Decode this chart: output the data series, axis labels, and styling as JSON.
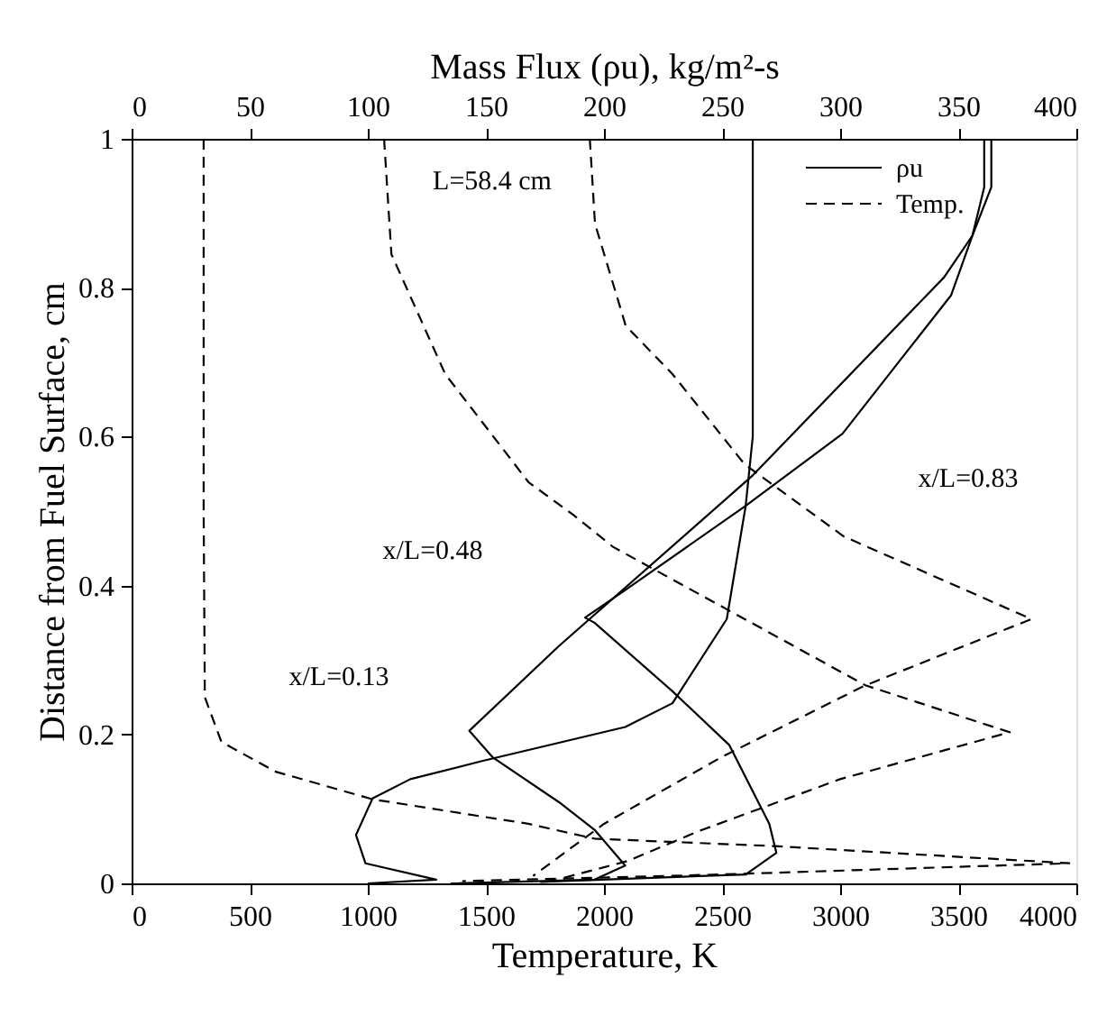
{
  "chart_data": {
    "type": "line",
    "xlabel": "Temperature, K",
    "x2label": "Mass Flux (ρu), kg/m²-s",
    "ylabel": "Distance from Fuel Surface, cm",
    "xlim": [
      0,
      4000
    ],
    "xticks": [
      0,
      500,
      1000,
      1500,
      2000,
      2500,
      3000,
      3500,
      4000
    ],
    "x2lim": [
      0,
      400
    ],
    "x2ticks": [
      0,
      50,
      100,
      150,
      200,
      250,
      300,
      350,
      400
    ],
    "ylim": [
      0,
      1
    ],
    "yticks": [
      0,
      0.2,
      0.4,
      0.6,
      0.8,
      1
    ],
    "grid": false,
    "legend": "top right",
    "marker": "none",
    "series": [
      {
        "name": "ρu",
        "color": "#000000",
        "line_style": "solid",
        "axis": "x2",
        "x": [
          100,
          129,
          99,
          95,
          102,
          118,
          148,
          209,
          229,
          252,
          260,
          263,
          263
        ],
        "values": [
          0,
          0.005,
          0.027,
          0.065,
          0.114,
          0.14,
          0.164,
          0.21,
          0.242,
          0.355,
          0.507,
          0.6,
          1
        ]
      },
      {
        "color": "#000000",
        "line_style": "solid",
        "axis": "x2",
        "x": [
          135,
          196,
          209,
          196,
          181,
          153,
          143,
          181,
          263,
          344,
          356,
          361,
          361
        ],
        "values": [
          0,
          0.005,
          0.024,
          0.072,
          0.109,
          0.169,
          0.205,
          0.319,
          0.548,
          0.814,
          0.87,
          0.935,
          1
        ]
      },
      {
        "color": "#000000",
        "line_style": "solid",
        "axis": "x2",
        "x": [
          173,
          260,
          273,
          270,
          253,
          229,
          196,
          192,
          209,
          260,
          301,
          347,
          356,
          364,
          364
        ],
        "values": [
          0.002,
          0.012,
          0.041,
          0.08,
          0.186,
          0.258,
          0.35,
          0.357,
          0.394,
          0.507,
          0.604,
          0.79,
          0.87,
          0.935,
          1
        ]
      },
      {
        "name": "Temp.",
        "color": "#000000",
        "line_style": "dashed",
        "x": [
          305,
          305,
          310,
          380,
          610,
          1020,
          1680,
          1960,
          2725,
          3970,
          2500,
          1400
        ],
        "values": [
          1,
          0.5,
          0.25,
          0.19,
          0.15,
          0.113,
          0.08,
          0.06,
          0.05,
          0.027,
          0.012,
          0.003
        ]
      },
      {
        "color": "#000000",
        "line_style": "dashed",
        "x": [
          1069,
          1100,
          1328,
          1680,
          1870,
          2038,
          3107,
          3718,
          3000,
          2400,
          2100,
          1800
        ],
        "values": [
          1,
          0.845,
          0.684,
          0.539,
          0.495,
          0.452,
          0.266,
          0.203,
          0.14,
          0.07,
          0.03,
          0.005
        ]
      },
      {
        "color": "#000000",
        "line_style": "dashed",
        "x": [
          1940,
          1962,
          2092,
          2290,
          2595,
          3015,
          3810,
          3100,
          2500,
          2000,
          1700
        ],
        "values": [
          1,
          0.886,
          0.749,
          0.684,
          0.563,
          0.466,
          0.355,
          0.265,
          0.17,
          0.08,
          0.01
        ]
      }
    ],
    "annotations": [
      "L=58.4 cm",
      "x/L=0.13",
      "x/L=0.48",
      "x/L=0.83"
    ]
  }
}
